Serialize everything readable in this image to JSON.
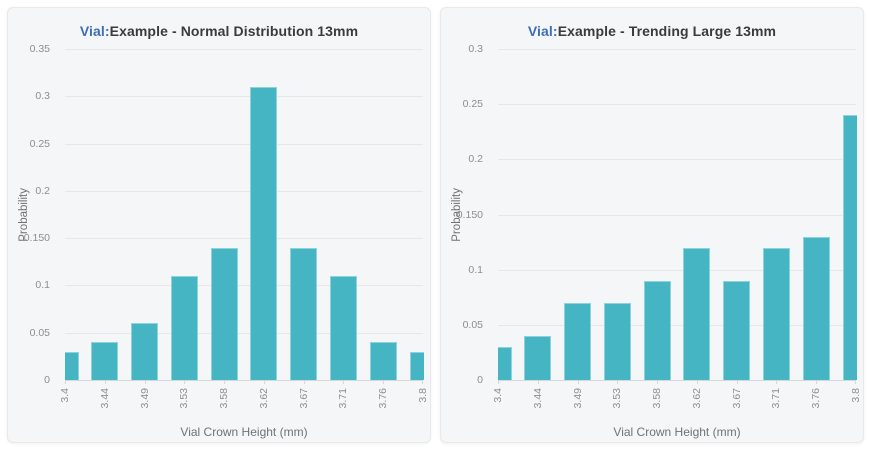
{
  "page": {
    "background": "#ffffff"
  },
  "colors": {
    "bar": "#45b5c4",
    "bar_edge": "#8ed2dd",
    "title_accent": "#3e6fb5",
    "title_text": "#3b3b3b",
    "card_bg": "#f5f6f7",
    "card_border": "#e8e9ea",
    "grid": "#e6e8e8",
    "axis_line": "#d4d8d8",
    "tick_text": "#8a8f90",
    "axis_title_text": "#6f7374"
  },
  "chart_data": [
    {
      "type": "bar",
      "title": "Vial:Example - Normal Distribution 13mm",
      "title_prefix": "Vial:",
      "title_rest": "Example - Normal Distribution 13mm",
      "xlabel": "Vial Crown Height (mm)",
      "ylabel": "Probability",
      "categories": [
        "3.4",
        "3.44",
        "3.49",
        "3.53",
        "3.58",
        "3.62",
        "3.67",
        "3.71",
        "3.76",
        "3.8"
      ],
      "values": [
        0.03,
        0.04,
        0.06,
        0.11,
        0.14,
        0.31,
        0.14,
        0.11,
        0.04,
        0.03
      ],
      "ylim": [
        0,
        0.35
      ],
      "y_tick_labels": [
        "0.35",
        "0.3",
        "0.25",
        "0.2",
        "0.150",
        "0.1",
        "0.05",
        "0"
      ],
      "grid": "horizontal-only",
      "legend": "none",
      "x_label_rotation": -90
    },
    {
      "type": "bar",
      "title": "Vial:Example - Trending Large 13mm",
      "title_prefix": "Vial:",
      "title_rest": "Example - Trending Large 13mm",
      "xlabel": "Vial Crown Height (mm)",
      "ylabel": "Probability",
      "categories": [
        "3.4",
        "3.44",
        "3.49",
        "3.53",
        "3.58",
        "3.62",
        "3.67",
        "3.71",
        "3.76",
        "3.8"
      ],
      "values": [
        0.03,
        0.04,
        0.07,
        0.07,
        0.09,
        0.12,
        0.09,
        0.12,
        0.13,
        0.24
      ],
      "ylim": [
        0,
        0.3
      ],
      "y_tick_labels": [
        "0.3",
        "0.25",
        "0.2",
        "0.150",
        "0.1",
        "0.05",
        "0"
      ],
      "grid": "horizontal-only",
      "legend": "none",
      "x_label_rotation": -90
    }
  ]
}
